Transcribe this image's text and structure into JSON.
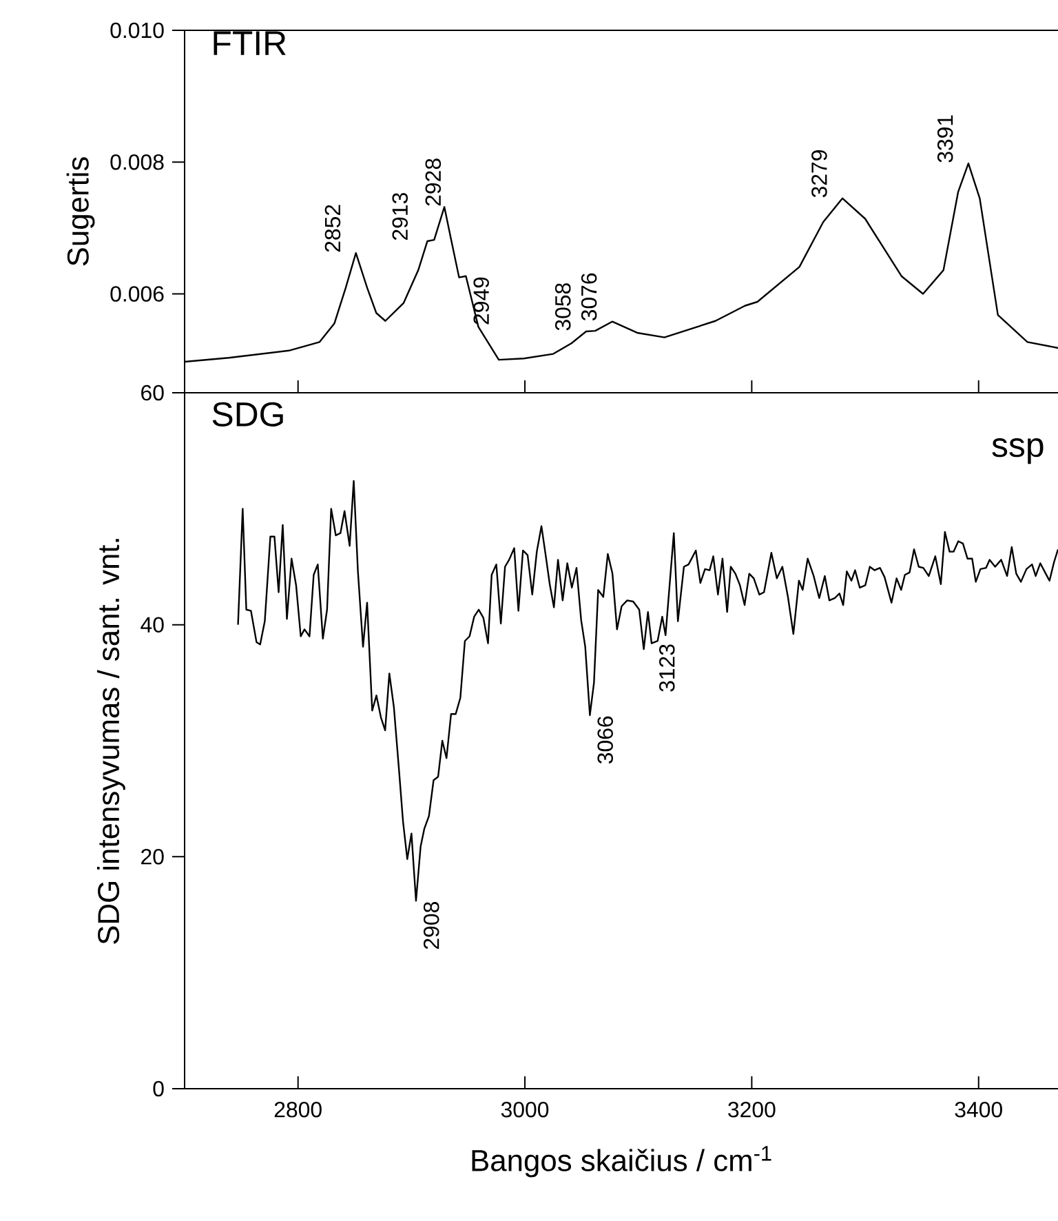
{
  "chart_data": [
    {
      "type": "line",
      "title": "FTIR",
      "ylabel": "Sugertis",
      "tick_labels": "y",
      "xlim": [
        2700,
        3470
      ],
      "ylim": [
        0.0045,
        0.01
      ],
      "xticks": [
        2800,
        3000,
        3200,
        3400
      ],
      "yticks": [
        {
          "value": 0.006,
          "label": "0.006"
        },
        {
          "value": 0.008,
          "label": "0.008"
        },
        {
          "value": 0.01,
          "label": "0.010"
        }
      ],
      "x": [
        2700,
        2739,
        2792,
        2819,
        2832,
        2842,
        2851,
        2861,
        2869,
        2877,
        2893,
        2906,
        2914,
        2920,
        2929,
        2935,
        2942,
        2948,
        2959,
        2977,
        2999,
        3025,
        3041,
        3054,
        3062,
        3077,
        3099,
        3123,
        3168,
        3194,
        3205,
        3242,
        3263,
        3280,
        3300,
        3332,
        3351,
        3369,
        3382,
        3391,
        3401,
        3417,
        3443,
        3470
      ],
      "series": [
        {
          "color": "#000000",
          "values": [
            0.00497,
            0.00503,
            0.00514,
            0.00527,
            0.00555,
            0.00609,
            0.00662,
            0.00609,
            0.00571,
            0.00559,
            0.00586,
            0.00636,
            0.0068,
            0.00682,
            0.00732,
            0.00682,
            0.00625,
            0.00627,
            0.0055,
            0.005,
            0.00502,
            0.00509,
            0.00525,
            0.00543,
            0.00544,
            0.00558,
            0.00541,
            0.00534,
            0.00559,
            0.00582,
            0.00588,
            0.00641,
            0.00709,
            0.00745,
            0.00714,
            0.00627,
            0.006,
            0.00636,
            0.00755,
            0.00798,
            0.00745,
            0.00568,
            0.00527,
            0.00518
          ]
        }
      ],
      "annotations": [
        {
          "text": "2852",
          "x": 2851,
          "y": 0.00662
        },
        {
          "text": "2913",
          "x": 2914,
          "y": 0.0068
        },
        {
          "text": "2928",
          "x": 2929,
          "y": 0.00732
        },
        {
          "text": "2949",
          "x": 2948,
          "y": 0.00627
        },
        {
          "text": "3058",
          "x": 3054,
          "y": 0.00543
        },
        {
          "text": "3076",
          "x": 3077,
          "y": 0.00558
        },
        {
          "text": "3279",
          "x": 3280,
          "y": 0.00745
        },
        {
          "text": "3391",
          "x": 3391,
          "y": 0.00798
        }
      ]
    },
    {
      "type": "line",
      "title": "SDG",
      "xlabel": "Bangos skaičius / cm$^{-1}$",
      "ylabel": "SDG intensyvumas / sant. vnt.",
      "xlim": [
        2700,
        3470
      ],
      "ylim": [
        0,
        60
      ],
      "xticks": [
        2800,
        3000,
        3200,
        3400
      ],
      "yticks": [
        0,
        20,
        40,
        60
      ],
      "x": [
        2747.1,
        2751.2,
        2754.4,
        2758.5,
        2763.4,
        2766.6,
        2770.7,
        2775.6,
        2779.2,
        2782.9,
        2786.5,
        2790.2,
        2794.3,
        2798.3,
        2802.4,
        2805.7,
        2810.1,
        2813.8,
        2817.4,
        2821.9,
        2825.6,
        2829.2,
        2833.3,
        2837.4,
        2841.0,
        2845.5,
        2849.1,
        2852.8,
        2857.3,
        2860.9,
        2865.4,
        2869.1,
        2873.1,
        2876.8,
        2880.5,
        2884.5,
        2889.0,
        2892.6,
        2896.3,
        2900.0,
        2904.0,
        2908.1,
        2911.3,
        2915.4,
        2919.5,
        2923.5,
        2927.2,
        2930.9,
        2934.9,
        2939.0,
        2943.1,
        2947.1,
        2951.2,
        2955.3,
        2959.3,
        2963.4,
        2967.5,
        2970.7,
        2974.8,
        2978.8,
        2982.5,
        2986.1,
        2990.6,
        2994.3,
        2998.3,
        3002.4,
        3006.5,
        3010.5,
        3014.6,
        3018.3,
        3021.9,
        3025.6,
        3029.2,
        3033.3,
        3037.4,
        3041.4,
        3045.5,
        3049.6,
        3053.2,
        3057.3,
        3060.9,
        3064.6,
        3069.1,
        3073.1,
        3077.2,
        3081.2,
        3085.3,
        3090.2,
        3095.5,
        3100.8,
        3104.8,
        3108.5,
        3111.7,
        3117.0,
        3121.1,
        3124.0,
        3131.3,
        3134.9,
        3140.2,
        3144.3,
        3150.7,
        3154.7,
        3158.8,
        3162.9,
        3166.1,
        3170.2,
        3174.2,
        3178.3,
        3181.5,
        3185.6,
        3189.6,
        3193.7,
        3197.8,
        3201.8,
        3206.7,
        3210.8,
        3217.3,
        3222.1,
        3227.0,
        3231.9,
        3236.7,
        3241.6,
        3244.9,
        3249.3,
        3254.6,
        3259.5,
        3264.4,
        3268.4,
        3273.3,
        3277.3,
        3280.6,
        3283.8,
        3287.9,
        3291.1,
        3295.2,
        3300.1,
        3304.1,
        3308.2,
        3313.1,
        3317.1,
        3323.2,
        3327.7,
        3331.7,
        3335.0,
        3339.1,
        3343.1,
        3347.2,
        3351.2,
        3356.1,
        3361.8,
        3366.7,
        3370.3,
        3374.4,
        3378.0,
        3382.1,
        3386.2,
        3390.2,
        3394.3,
        3397.5,
        3401.6,
        3406.5,
        3409.7,
        3414.6,
        3419.9,
        3425.1,
        3429.2,
        3433.2,
        3437.3,
        3442.2,
        3447.1,
        3450.3,
        3454.4,
        3459.2,
        3462.5,
        3466.5,
        3470
      ],
      "series": [
        {
          "color": "#000000",
          "values": [
            40.0,
            50.0,
            41.3,
            41.2,
            38.5,
            38.3,
            40.3,
            47.6,
            47.6,
            42.8,
            48.6,
            40.5,
            45.7,
            43.4,
            39.0,
            39.6,
            39.0,
            44.3,
            45.2,
            38.8,
            41.3,
            50.0,
            47.7,
            47.9,
            49.8,
            46.8,
            52.4,
            44.6,
            38.1,
            41.9,
            32.6,
            33.9,
            32.0,
            30.9,
            35.8,
            32.9,
            27.5,
            23.0,
            19.8,
            22.0,
            16.2,
            20.9,
            22.4,
            23.5,
            26.6,
            26.9,
            30.0,
            28.5,
            32.3,
            32.3,
            33.7,
            38.6,
            39.0,
            40.7,
            41.3,
            40.6,
            38.4,
            44.3,
            45.2,
            40.1,
            45.0,
            45.6,
            46.6,
            41.2,
            46.4,
            46.0,
            42.6,
            46.3,
            48.5,
            46.0,
            43.5,
            41.5,
            45.6,
            42.1,
            45.3,
            43.2,
            44.9,
            40.4,
            38.1,
            32.2,
            35.0,
            43.0,
            42.4,
            46.1,
            44.4,
            39.6,
            41.6,
            42.1,
            42.0,
            41.3,
            37.9,
            41.1,
            38.4,
            38.6,
            40.7,
            39.1,
            47.9,
            40.3,
            45.0,
            45.2,
            46.4,
            43.6,
            44.8,
            44.7,
            45.9,
            42.6,
            45.7,
            41.1,
            45.0,
            44.4,
            43.4,
            41.7,
            44.4,
            44.0,
            42.6,
            42.8,
            46.2,
            44.0,
            45.0,
            42.4,
            39.2,
            43.8,
            43.0,
            45.7,
            44.2,
            42.3,
            44.2,
            42.1,
            42.3,
            42.7,
            41.7,
            44.6,
            43.8,
            44.7,
            43.2,
            43.4,
            45.0,
            44.7,
            44.9,
            44.1,
            41.9,
            44.0,
            43.0,
            44.3,
            44.5,
            46.5,
            45.0,
            44.9,
            44.2,
            45.9,
            43.5,
            48.0,
            46.3,
            46.3,
            47.2,
            47.0,
            45.7,
            45.7,
            43.7,
            44.8,
            44.9,
            45.6,
            45.0,
            45.6,
            44.2,
            46.7,
            44.4,
            43.7,
            44.8,
            45.2,
            44.2,
            45.3,
            44.4,
            43.8,
            45.4,
            46.5
          ]
        }
      ],
      "annotations": [
        {
          "text": "2908",
          "x": 2904.0,
          "y": 16.2
        },
        {
          "text": "3066",
          "x": 3057.3,
          "y": 32.2
        },
        {
          "text": "3123",
          "x": 3111.7,
          "y": 38.4
        },
        "ssp"
      ]
    }
  ]
}
